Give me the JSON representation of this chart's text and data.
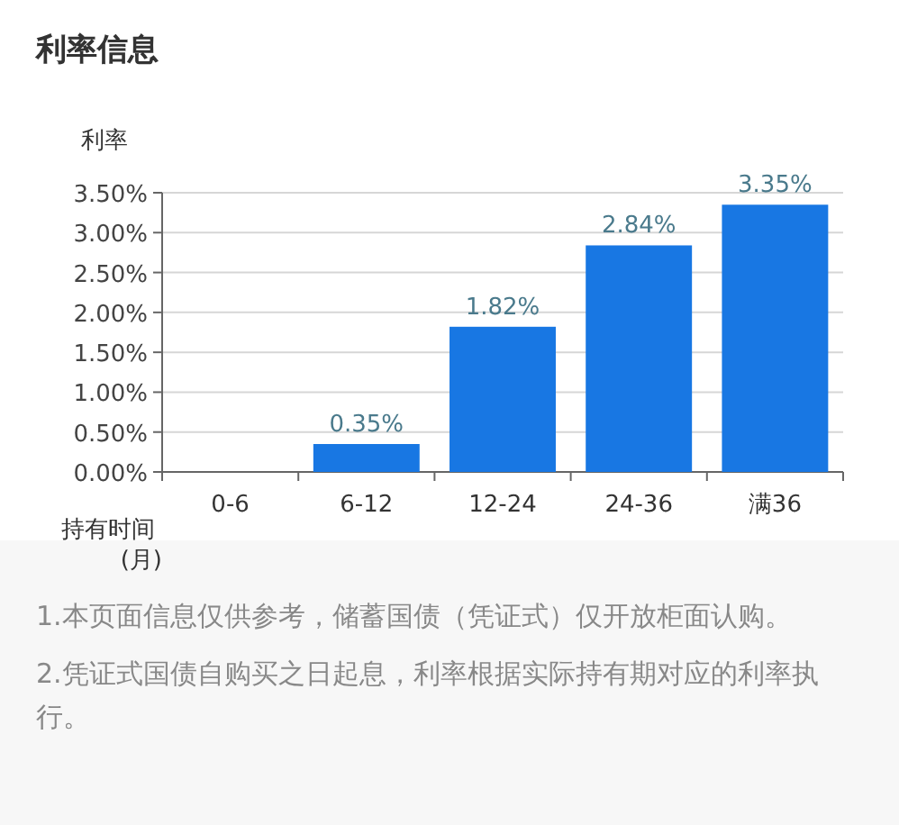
{
  "chart_data": {
    "type": "bar",
    "title": "利率信息",
    "ylabel": "利率",
    "xlabel": "持有时间\n(月)",
    "categories": [
      "0-6",
      "6-12",
      "12-24",
      "24-36",
      "满36"
    ],
    "values": [
      null,
      0.35,
      1.82,
      2.84,
      3.35
    ],
    "value_labels": [
      null,
      "0.35%",
      "1.82%",
      "2.84%",
      "3.35%"
    ],
    "color": "#1877e3",
    "ylim": [
      0,
      3.5
    ],
    "yticks": [
      {
        "value": 0,
        "label": "0.00%"
      },
      {
        "value": 0.5,
        "label": "0.50%"
      },
      {
        "value": 1,
        "label": "1.00%"
      },
      {
        "value": 1.5,
        "label": "1.50%"
      },
      {
        "value": 2,
        "label": "2.00%"
      },
      {
        "value": 2.5,
        "label": "2.50%"
      },
      {
        "value": 3,
        "label": "3.00%"
      },
      {
        "value": 3.5,
        "label": "3.50%"
      }
    ],
    "grid": "y",
    "annotations": [
      "1.本页面信息仅供参考，储蓄国债（凭证式）仅开放柜面认购。",
      "2.凭证式国债自购买之日起息，利率根据实际持有期对应的利率执行。"
    ]
  }
}
